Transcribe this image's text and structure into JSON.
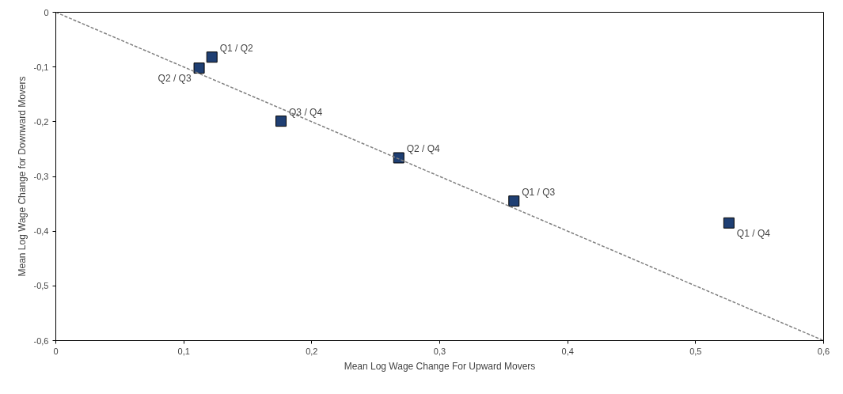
{
  "chart_data": {
    "type": "scatter",
    "xlabel": "Mean Log Wage Change For Upward Movers",
    "ylabel": "Mean Log Wage Change for Downward Movers",
    "x": [
      0.122,
      0.112,
      0.176,
      0.268,
      0.358,
      0.526
    ],
    "series": [
      {
        "color": "#1f3f73",
        "values": [
          -0.082,
          -0.102,
          -0.199,
          -0.266,
          -0.345,
          -0.385
        ],
        "marker": "square"
      },
      {
        "type": "line",
        "color": "#808080",
        "x": [
          0,
          0.6
        ],
        "values": [
          0,
          -0.6
        ],
        "line_style": "dashed",
        "marker": "none"
      }
    ],
    "annotations": [
      {
        "text": "Q1 / Q2",
        "x": 0.122,
        "y": -0.082
      },
      {
        "text": "Q2 / Q3",
        "x": 0.112,
        "y": -0.102
      },
      {
        "text": "Q3 / Q4",
        "x": 0.176,
        "y": -0.199
      },
      {
        "text": "Q2 / Q4",
        "x": 0.268,
        "y": -0.266
      },
      {
        "text": "Q1 / Q3",
        "x": 0.358,
        "y": -0.345
      },
      {
        "text": "Q1 / Q4",
        "x": 0.526,
        "y": -0.385
      }
    ],
    "xlim": [
      0,
      0.6
    ],
    "ylim": [
      -0.6,
      0
    ],
    "xticks": [
      0,
      {
        "value": 0.1,
        "label": "0,1"
      },
      {
        "value": 0.2,
        "label": "0,2"
      },
      {
        "value": 0.3,
        "label": "0,3"
      },
      {
        "value": 0.4,
        "label": "0,4"
      },
      {
        "value": 0.5,
        "label": "0,5"
      },
      {
        "value": 0.6,
        "label": "0,6"
      }
    ],
    "yticks": [
      {
        "value": -0.6,
        "label": "-0,6"
      },
      {
        "value": -0.5,
        "label": "-0,5"
      },
      {
        "value": -0.4,
        "label": "-0,4"
      },
      {
        "value": -0.3,
        "label": "-0,3"
      },
      {
        "value": -0.2,
        "label": "-0,2"
      },
      {
        "value": -0.1,
        "label": "-0,1"
      },
      0
    ],
    "grid": false
  }
}
